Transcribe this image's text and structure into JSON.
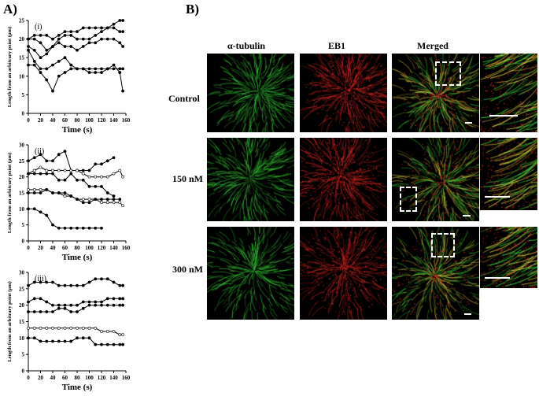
{
  "panel_a_label": "A)",
  "panel_b_label": "B)",
  "chart_data": [
    {
      "type": "line",
      "panel": "(i)",
      "xlabel": "Time (s)",
      "ylabel": "Length from an arbitrary point (μm)",
      "xlim": [
        0,
        160
      ],
      "ylim": [
        0,
        25
      ],
      "xticks": [
        0,
        20,
        40,
        60,
        80,
        100,
        120,
        140,
        160
      ],
      "yticks": [
        0,
        5,
        10,
        15,
        20,
        25
      ],
      "series": [
        {
          "marker": "filled",
          "x": [
            0,
            10,
            20,
            30,
            40,
            50,
            60,
            70,
            80,
            90,
            100,
            110,
            120,
            130,
            140,
            150,
            155
          ],
          "y": [
            20,
            21,
            21,
            21,
            20,
            21,
            22,
            22,
            22,
            23,
            23,
            23,
            23,
            23,
            23,
            22,
            22
          ]
        },
        {
          "marker": "filled",
          "x": [
            0,
            10,
            20,
            30,
            40,
            50,
            60,
            70,
            80,
            90,
            100,
            110,
            120,
            130,
            140,
            150,
            155
          ],
          "y": [
            20,
            20,
            19,
            17,
            18,
            20,
            21,
            21,
            20,
            20,
            20,
            21,
            22,
            23,
            24,
            25,
            25
          ]
        },
        {
          "marker": "filled",
          "x": [
            0,
            10,
            20,
            30,
            40,
            50,
            60,
            70,
            80,
            90,
            100,
            110,
            120,
            130,
            140,
            150,
            155
          ],
          "y": [
            18,
            17,
            15,
            16,
            18,
            19,
            18,
            18,
            17,
            18,
            19,
            19,
            20,
            20,
            20,
            19,
            18
          ]
        },
        {
          "marker": "filled",
          "x": [
            0,
            10,
            20,
            30,
            40,
            50,
            60,
            70,
            80,
            90,
            100,
            110,
            120,
            130,
            140,
            150,
            155
          ],
          "y": [
            17,
            14,
            12,
            12,
            13,
            14,
            15,
            13,
            12,
            12,
            11,
            11,
            11,
            12,
            13,
            11,
            6
          ]
        },
        {
          "marker": "filled",
          "x": [
            0,
            10,
            20,
            30,
            40,
            50,
            60,
            70,
            80,
            90,
            100,
            110,
            120,
            130,
            140,
            150,
            155
          ],
          "y": [
            13,
            13,
            11,
            9,
            6,
            10,
            11,
            12,
            12,
            12,
            12,
            12,
            12,
            12,
            12,
            12,
            12
          ]
        }
      ]
    },
    {
      "type": "line",
      "panel": "(ii)",
      "xlabel": "Time (s)",
      "ylabel": "Length from an arbitrary point (μm)",
      "xlim": [
        0,
        160
      ],
      "ylim": [
        0,
        30
      ],
      "xticks": [
        0,
        20,
        40,
        60,
        80,
        100,
        120,
        140,
        160
      ],
      "yticks": [
        0,
        5,
        10,
        15,
        20,
        25,
        30
      ],
      "series": [
        {
          "marker": "filled",
          "x": [
            0,
            10,
            20,
            30,
            40,
            50,
            60,
            70,
            80,
            90,
            100,
            110,
            120,
            130,
            140
          ],
          "y": [
            25,
            26,
            27,
            25,
            25,
            27,
            28,
            22,
            22,
            22,
            22,
            24,
            24,
            25,
            26
          ]
        },
        {
          "marker": "open",
          "x": [
            0,
            10,
            20,
            30,
            40,
            50,
            60,
            70,
            80,
            90,
            100,
            110,
            120,
            130,
            140,
            150,
            155
          ],
          "y": [
            21,
            22,
            23,
            22,
            22,
            22,
            22,
            22,
            22,
            21,
            20,
            20,
            20,
            20,
            21,
            22,
            20
          ]
        },
        {
          "marker": "filled",
          "x": [
            0,
            10,
            20,
            30,
            40,
            50,
            60,
            70,
            80,
            90,
            100,
            110,
            120,
            130,
            140
          ],
          "y": [
            21,
            21,
            21,
            21,
            21,
            19,
            19,
            21,
            19,
            19,
            17,
            17,
            17,
            15,
            14
          ]
        },
        {
          "marker": "open",
          "x": [
            0,
            10,
            20,
            30,
            40,
            50,
            60,
            70,
            80,
            90,
            100,
            110,
            120,
            130,
            140,
            150,
            155
          ],
          "y": [
            16,
            16,
            16,
            16,
            15,
            15,
            14,
            14,
            13,
            13,
            13,
            13,
            12,
            12,
            12,
            12,
            11
          ]
        },
        {
          "marker": "filled",
          "x": [
            0,
            10,
            20,
            30,
            40,
            50,
            60,
            70,
            80,
            90,
            100,
            110,
            120,
            130,
            140,
            150
          ],
          "y": [
            15,
            15,
            15,
            16,
            15,
            15,
            15,
            14,
            13,
            12,
            12,
            13,
            13,
            13,
            13,
            13
          ]
        },
        {
          "marker": "filled",
          "x": [
            0,
            10,
            20,
            30,
            40,
            50,
            60,
            70,
            80,
            90,
            100,
            110,
            120
          ],
          "y": [
            10,
            10,
            9,
            8,
            5,
            4,
            4,
            4,
            4,
            4,
            4,
            4,
            4
          ]
        }
      ]
    },
    {
      "type": "line",
      "panel": "(iii)",
      "xlabel": "Time (s)",
      "ylabel": "Length from an arbitrary point (μm)",
      "xlim": [
        0,
        160
      ],
      "ylim": [
        0,
        30
      ],
      "xticks": [
        0,
        20,
        40,
        60,
        80,
        100,
        120,
        140,
        160
      ],
      "yticks": [
        0,
        5,
        10,
        15,
        20,
        25,
        30
      ],
      "series": [
        {
          "marker": "filled",
          "x": [
            0,
            10,
            20,
            30,
            40,
            50,
            60,
            70,
            80,
            90,
            100,
            110,
            120,
            130,
            140,
            150,
            155
          ],
          "y": [
            26,
            27,
            27,
            27,
            27,
            26,
            26,
            26,
            26,
            26,
            27,
            28,
            28,
            28,
            27,
            26,
            26
          ]
        },
        {
          "marker": "filled",
          "x": [
            0,
            10,
            20,
            30,
            40,
            50,
            60,
            70,
            80,
            90,
            100,
            110,
            120,
            130,
            140,
            150,
            155
          ],
          "y": [
            21,
            22,
            22,
            21,
            20,
            20,
            20,
            20,
            20,
            21,
            21,
            21,
            21,
            22,
            22,
            22,
            22
          ]
        },
        {
          "marker": "filled",
          "x": [
            0,
            10,
            20,
            30,
            40,
            50,
            60,
            70,
            80,
            90,
            100,
            110,
            120,
            130,
            140,
            150,
            155
          ],
          "y": [
            18,
            18,
            18,
            18,
            18,
            19,
            19,
            18,
            18,
            19,
            20,
            20,
            20,
            20,
            20,
            20,
            20
          ]
        },
        {
          "marker": "open",
          "x": [
            0,
            10,
            20,
            30,
            40,
            50,
            60,
            70,
            80,
            90,
            100,
            110,
            120,
            130,
            140,
            150,
            155
          ],
          "y": [
            13,
            13,
            13,
            13,
            13,
            13,
            13,
            13,
            13,
            13,
            13,
            13,
            12,
            12,
            12,
            11,
            11
          ]
        },
        {
          "marker": "filled",
          "x": [
            0,
            10,
            20,
            30,
            40,
            50,
            60,
            70,
            80,
            90,
            100,
            110,
            120,
            130,
            140,
            150,
            155
          ],
          "y": [
            10,
            10,
            9,
            9,
            9,
            9,
            9,
            9,
            10,
            10,
            10,
            8,
            8,
            8,
            8,
            8,
            8
          ]
        }
      ]
    }
  ],
  "panel_b": {
    "columns": [
      "α-tubulin",
      "EB1",
      "Merged"
    ],
    "rows": [
      "Control",
      "150 nM",
      "300 nM"
    ]
  }
}
